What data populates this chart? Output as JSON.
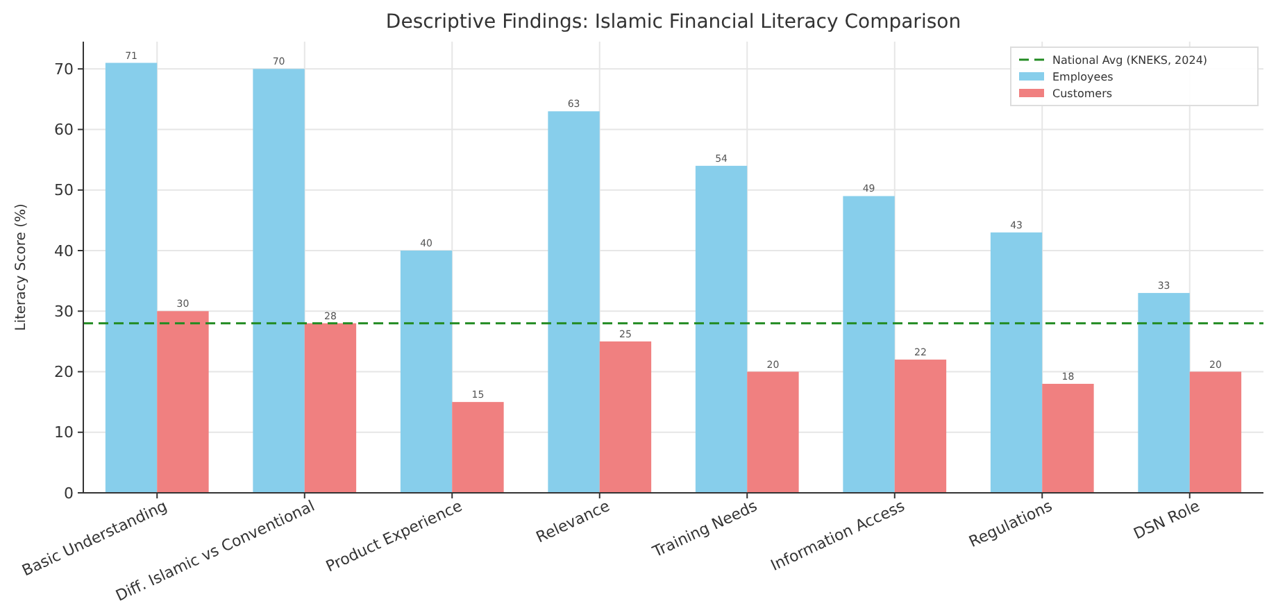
{
  "chart_data": {
    "type": "bar",
    "title": "Descriptive Findings: Islamic Financial Literacy Comparison",
    "ylabel": "Literacy Score (%)",
    "categories": [
      "Basic Understanding",
      "Diff. Islamic vs Conventional",
      "Product Experience",
      "Relevance",
      "Training Needs",
      "Information Access",
      "Regulations",
      "DSN Role"
    ],
    "series": [
      {
        "name": "Employees",
        "color": "#87ceeb",
        "values": [
          71,
          70,
          40,
          63,
          54,
          49,
          43,
          33
        ]
      },
      {
        "name": "Customers",
        "color": "#f08080",
        "values": [
          30,
          28,
          15,
          25,
          20,
          22,
          18,
          20
        ]
      }
    ],
    "ref_lines": [
      {
        "axis": "y",
        "value": 28,
        "label": "National Avg (KNEKS, 2024)",
        "color": "#228b22",
        "line_style": "dashed"
      }
    ],
    "ylim": [
      0,
      74.5
    ],
    "yticks": [
      0,
      10,
      20,
      30,
      40,
      50,
      60,
      70
    ],
    "grid": true,
    "legend": "top right",
    "data_labels": true
  }
}
